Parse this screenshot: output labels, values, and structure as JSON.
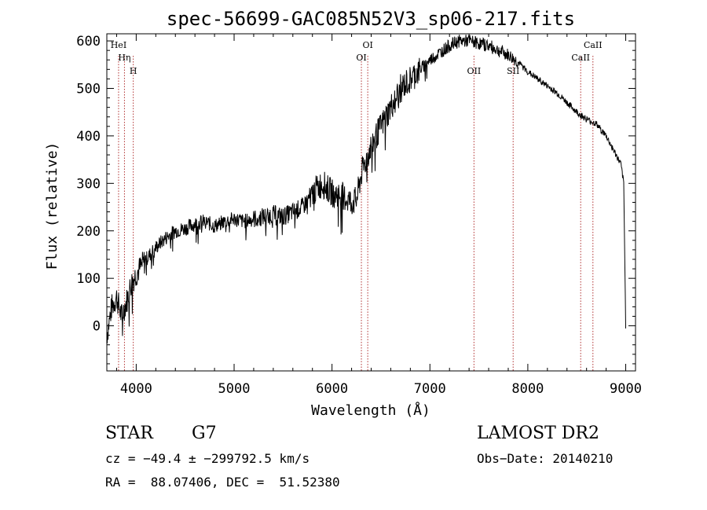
{
  "chart_data": {
    "type": "line",
    "title": "spec-56699-GAC085N52V3_sp06-217.fits",
    "xlabel": "Wavelength (Å)",
    "ylabel": "Flux (relative)",
    "xlim": [
      3700,
      9100
    ],
    "ylim": [
      -95,
      615
    ],
    "x_ticks": [
      4000,
      5000,
      6000,
      7000,
      8000,
      9000
    ],
    "y_ticks": [
      0,
      100,
      200,
      300,
      400,
      500,
      600
    ],
    "grid": false,
    "line_color": "#000000",
    "marker_color": "#b03030",
    "series": [
      {
        "x": [
          3700,
          3750,
          3800,
          3850,
          3900,
          3950,
          4000,
          4100,
          4200,
          4300,
          4400,
          4500,
          4600,
          4700,
          4800,
          4900,
          5000,
          5100,
          5200,
          5300,
          5400,
          5500,
          5600,
          5700,
          5800,
          5900,
          6000,
          6100,
          6200,
          6250,
          6300,
          6400,
          6500,
          6600,
          6700,
          6800,
          6900,
          7000,
          7100,
          7200,
          7300,
          7400,
          7500,
          7600,
          7700,
          7800,
          7900,
          8000,
          8100,
          8200,
          8300,
          8400,
          8500,
          8600,
          8700,
          8800,
          8850,
          8900,
          8950,
          8980,
          8990,
          9000
        ],
        "y": [
          -20,
          40,
          60,
          20,
          50,
          90,
          110,
          140,
          165,
          185,
          200,
          205,
          215,
          220,
          210,
          220,
          225,
          220,
          225,
          230,
          235,
          230,
          240,
          250,
          280,
          300,
          280,
          275,
          260,
          265,
          320,
          380,
          420,
          460,
          500,
          520,
          540,
          560,
          575,
          590,
          600,
          600,
          595,
          590,
          580,
          570,
          555,
          535,
          520,
          505,
          490,
          470,
          450,
          435,
          425,
          400,
          380,
          360,
          340,
          300,
          150,
          0
        ]
      }
    ],
    "lines": [
      {
        "label": "HeI",
        "x": 3820,
        "label_row": 0
      },
      {
        "label": "Hη",
        "x": 3880,
        "label_row": 1
      },
      {
        "label": "H",
        "x": 3970,
        "label_row": 2
      },
      {
        "label": "OI",
        "x": 6300,
        "label_row": 1
      },
      {
        "label": "OI",
        "x": 6365,
        "label_row": 0
      },
      {
        "label": "OII",
        "x": 7450,
        "label_row": 2
      },
      {
        "label": "SII",
        "x": 7850,
        "label_row": 2
      },
      {
        "label": "CaII",
        "x": 8540,
        "label_row": 1
      },
      {
        "label": "CaII",
        "x": 8665,
        "label_row": 0
      }
    ]
  },
  "info": {
    "object_class": "STAR",
    "subclass": "G7",
    "survey": "LAMOST DR2",
    "cz_line": "cz = −49.4 ± −299792.5 km/s",
    "obs_date_line": "Obs−Date: 20140210",
    "radec_line": "RA =  88.07406, DEC =  51.52380"
  }
}
